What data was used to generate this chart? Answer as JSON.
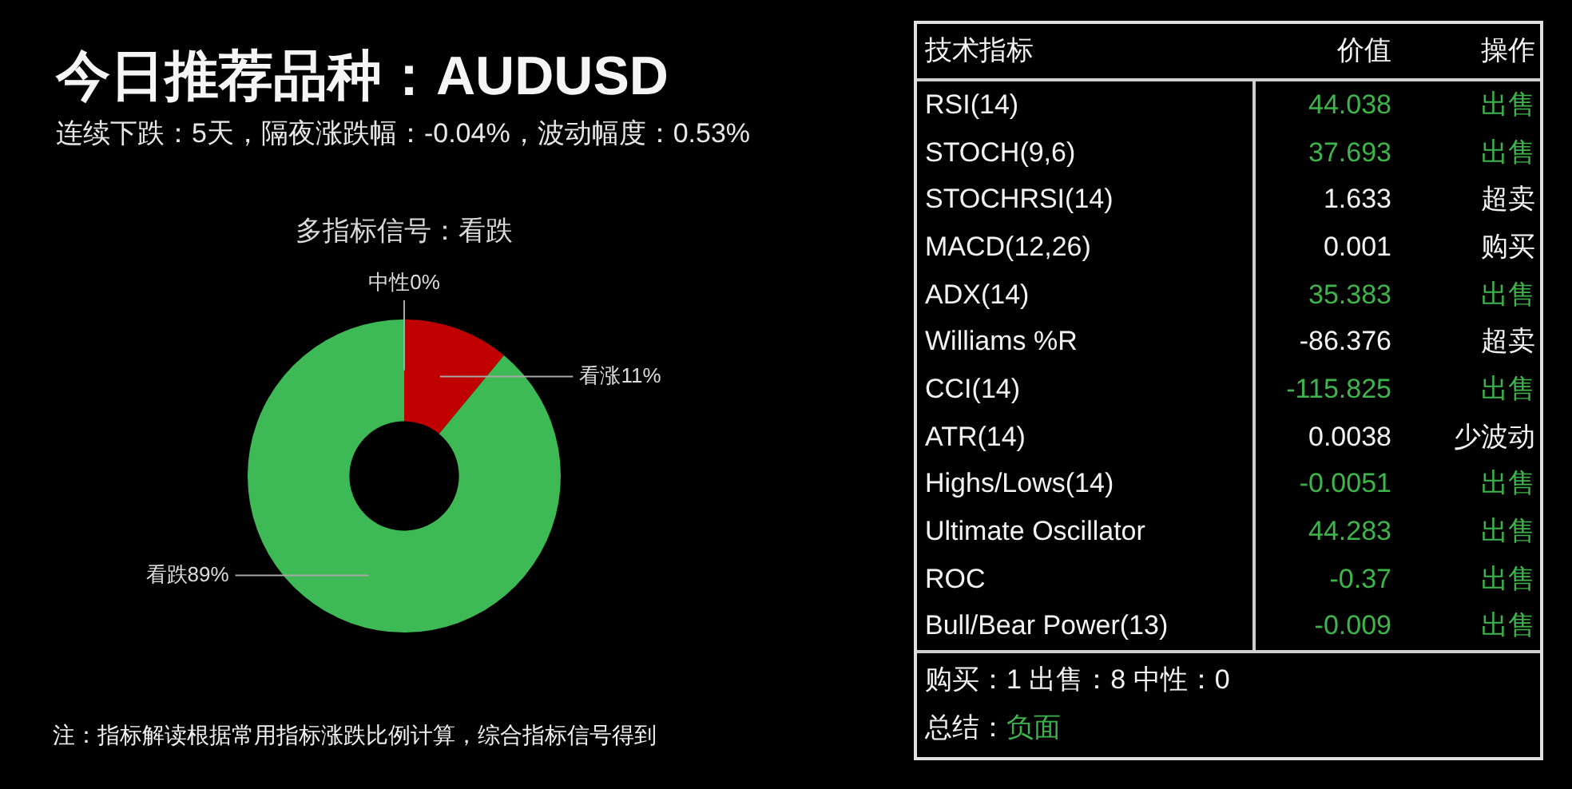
{
  "chart_data": [
    {
      "type": "donut",
      "title": "今日推荐品种：AUDUSD",
      "subtitle": "连续下跌：5天，隔夜涨跌幅：-0.04%，波动幅度：0.53%",
      "categories": [
        "中性",
        "看涨",
        "看跌"
      ],
      "values": [
        0,
        11,
        89
      ],
      "colors": [
        "#9e9e9e",
        "#c00000",
        "#3dba55"
      ],
      "value_labels": [
        "0%",
        "11%",
        "89%"
      ],
      "annotations": [
        "多指标信号：看跌",
        "注：指标解读根据常用指标涨跌比例计算，综合指标信号得到"
      ]
    },
    {
      "type": "other",
      "xlabel": "技术指标",
      "categories": [
        "RSI(14)",
        "STOCH(9,6)",
        "STOCHRSI(14)",
        "MACD(12,26)",
        "ADX(14)",
        "Williams %R",
        "CCI(14)",
        "ATR(14)",
        "Highs/Lows(14)",
        "Ultimate Oscillator",
        "ROC",
        "Bull/Bear Power(13)"
      ],
      "series": [
        {
          "name": "价值",
          "values": [
            44.038,
            37.693,
            1.633,
            0.001,
            35.383,
            -86.376,
            -115.825,
            0.0038,
            -0.0051,
            44.283,
            -0.37,
            -0.009
          ],
          "colors": [
            "#3db54a",
            "#3db54a",
            "#f2f2f2",
            "#f2f2f2",
            "#3db54a",
            "#f2f2f2",
            "#3db54a",
            "#f2f2f2",
            "#3db54a",
            "#3db54a",
            "#3db54a",
            "#3db54a"
          ]
        }
      ],
      "data_labels": true,
      "annotations": [
        "操作",
        "出售",
        "出售",
        "超卖",
        "购买",
        "出售",
        "超卖",
        "出售",
        "少波动",
        "出售",
        "出售",
        "出售",
        "出售",
        "购买：1 出售：8 中性：0",
        "总结：",
        "负面"
      ]
    }
  ]
}
